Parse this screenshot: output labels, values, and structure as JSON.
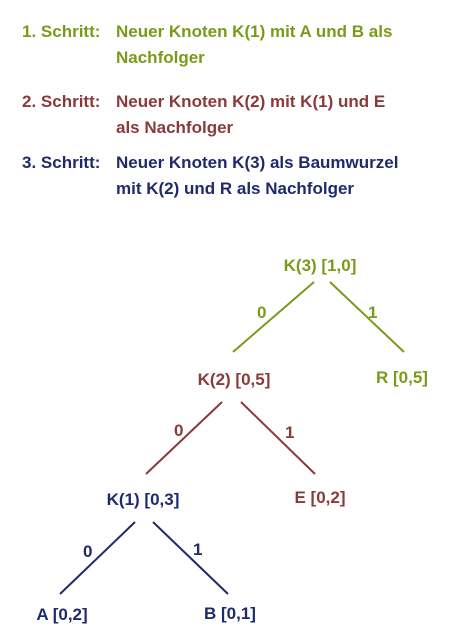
{
  "colors": {
    "step1": "#7a9a1a",
    "step2": "#8b3a3a",
    "step3": "#1f2a6b"
  },
  "steps": [
    {
      "label": "1. Schritt:",
      "line1": "Neuer Knoten K(1) mit A und B als",
      "line2": "Nachfolger"
    },
    {
      "label": "2. Schritt:",
      "line1": "Neuer Knoten K(2) mit K(1) und E",
      "line2": "als Nachfolger"
    },
    {
      "label": "3. Schritt:",
      "line1": "Neuer Knoten K(3) als Baumwurzel",
      "line2": "mit K(2) und R als Nachfolger"
    }
  ],
  "tree": {
    "nodes": {
      "k3": "K(3) [1,0]",
      "r": "R [0,5]",
      "k2": "K(2) [0,5]",
      "e": "E [0,2]",
      "k1": "K(1) [0,3]",
      "a": "A [0,2]",
      "b": "B [0,1]"
    },
    "edges": {
      "k3_left": "0",
      "k3_right": "1",
      "k2_left": "0",
      "k2_right": "1",
      "k1_left": "0",
      "k1_right": "1"
    }
  }
}
